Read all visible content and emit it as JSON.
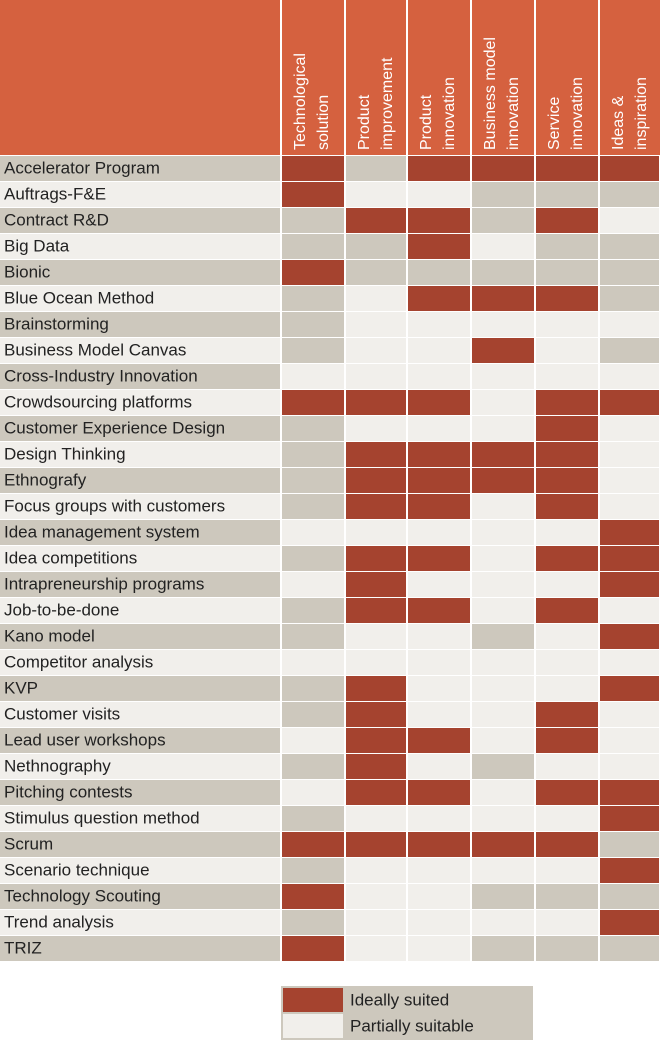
{
  "header": [
    [
      "Technological",
      "solution"
    ],
    [
      "Product",
      "improvement"
    ],
    [
      "Product",
      "innovation"
    ],
    [
      "Business model",
      "innovation"
    ],
    [
      "Service",
      "innovation"
    ],
    [
      "Ideas &",
      "inspiration"
    ]
  ],
  "legend": [
    "Ideally suited",
    "Partially suitable"
  ],
  "rows": [
    {
      "label": "Accelerator Program",
      "cells": [
        0,
        null,
        0,
        0,
        0,
        0
      ]
    },
    {
      "label": "Auftrags-F&E",
      "cells": [
        0,
        1,
        1,
        null,
        null,
        null
      ]
    },
    {
      "label": "Contract R&D",
      "cells": [
        null,
        0,
        0,
        null,
        0,
        1
      ]
    },
    {
      "label": "Big Data",
      "cells": [
        null,
        null,
        0,
        1,
        null,
        null
      ]
    },
    {
      "label": "Bionic",
      "cells": [
        0,
        null,
        null,
        null,
        null,
        null
      ]
    },
    {
      "label": "Blue Ocean Method",
      "cells": [
        null,
        1,
        0,
        0,
        0,
        null
      ]
    },
    {
      "label": "Brainstorming",
      "cells": [
        null,
        1,
        1,
        1,
        1,
        1
      ]
    },
    {
      "label": "Business Model Canvas",
      "cells": [
        null,
        1,
        1,
        0,
        1,
        null
      ]
    },
    {
      "label": "Cross-Industry Innovation",
      "cells": [
        1,
        1,
        1,
        1,
        1,
        1
      ]
    },
    {
      "label": "Crowdsourcing platforms",
      "cells": [
        0,
        0,
        0,
        1,
        0,
        0
      ]
    },
    {
      "label": "Customer Experience Design",
      "cells": [
        null,
        1,
        1,
        1,
        0,
        1
      ]
    },
    {
      "label": "Design Thinking",
      "cells": [
        null,
        0,
        0,
        0,
        0,
        1
      ]
    },
    {
      "label": "Ethnografy",
      "cells": [
        null,
        0,
        0,
        0,
        0,
        1
      ]
    },
    {
      "label": "Focus groups with customers",
      "cells": [
        null,
        0,
        0,
        1,
        0,
        1
      ]
    },
    {
      "label": "Idea management system",
      "cells": [
        1,
        1,
        1,
        1,
        1,
        0
      ]
    },
    {
      "label": "Idea competitions",
      "cells": [
        null,
        0,
        0,
        1,
        0,
        0
      ]
    },
    {
      "label": "Intrapreneurship programs",
      "cells": [
        1,
        0,
        1,
        1,
        1,
        0
      ]
    },
    {
      "label": "Job-to-be-done",
      "cells": [
        null,
        0,
        0,
        1,
        0,
        1
      ]
    },
    {
      "label": "Kano model",
      "cells": [
        null,
        1,
        1,
        null,
        1,
        0
      ]
    },
    {
      "label": "Competitor analysis",
      "cells": [
        1,
        1,
        1,
        1,
        1,
        1
      ]
    },
    {
      "label": "KVP",
      "cells": [
        null,
        0,
        1,
        1,
        1,
        0
      ]
    },
    {
      "label": "Customer visits",
      "cells": [
        null,
        0,
        1,
        1,
        0,
        1
      ]
    },
    {
      "label": "Lead user workshops",
      "cells": [
        1,
        0,
        0,
        1,
        0,
        1
      ]
    },
    {
      "label": "Nethnography",
      "cells": [
        null,
        0,
        1,
        null,
        1,
        1
      ]
    },
    {
      "label": "Pitching contests",
      "cells": [
        1,
        0,
        0,
        1,
        0,
        0
      ]
    },
    {
      "label": "Stimulus question method",
      "cells": [
        null,
        1,
        1,
        1,
        1,
        0
      ]
    },
    {
      "label": "Scrum",
      "cells": [
        0,
        0,
        0,
        0,
        0,
        null
      ]
    },
    {
      "label": "Scenario technique",
      "cells": [
        null,
        1,
        1,
        1,
        1,
        0
      ]
    },
    {
      "label": "Technology Scouting",
      "cells": [
        0,
        1,
        1,
        null,
        null,
        null
      ]
    },
    {
      "label": "Trend analysis",
      "cells": [
        null,
        1,
        1,
        1,
        1,
        0
      ]
    },
    {
      "label": "TRIZ",
      "cells": [
        0,
        1,
        1,
        null,
        null,
        null
      ]
    }
  ]
}
